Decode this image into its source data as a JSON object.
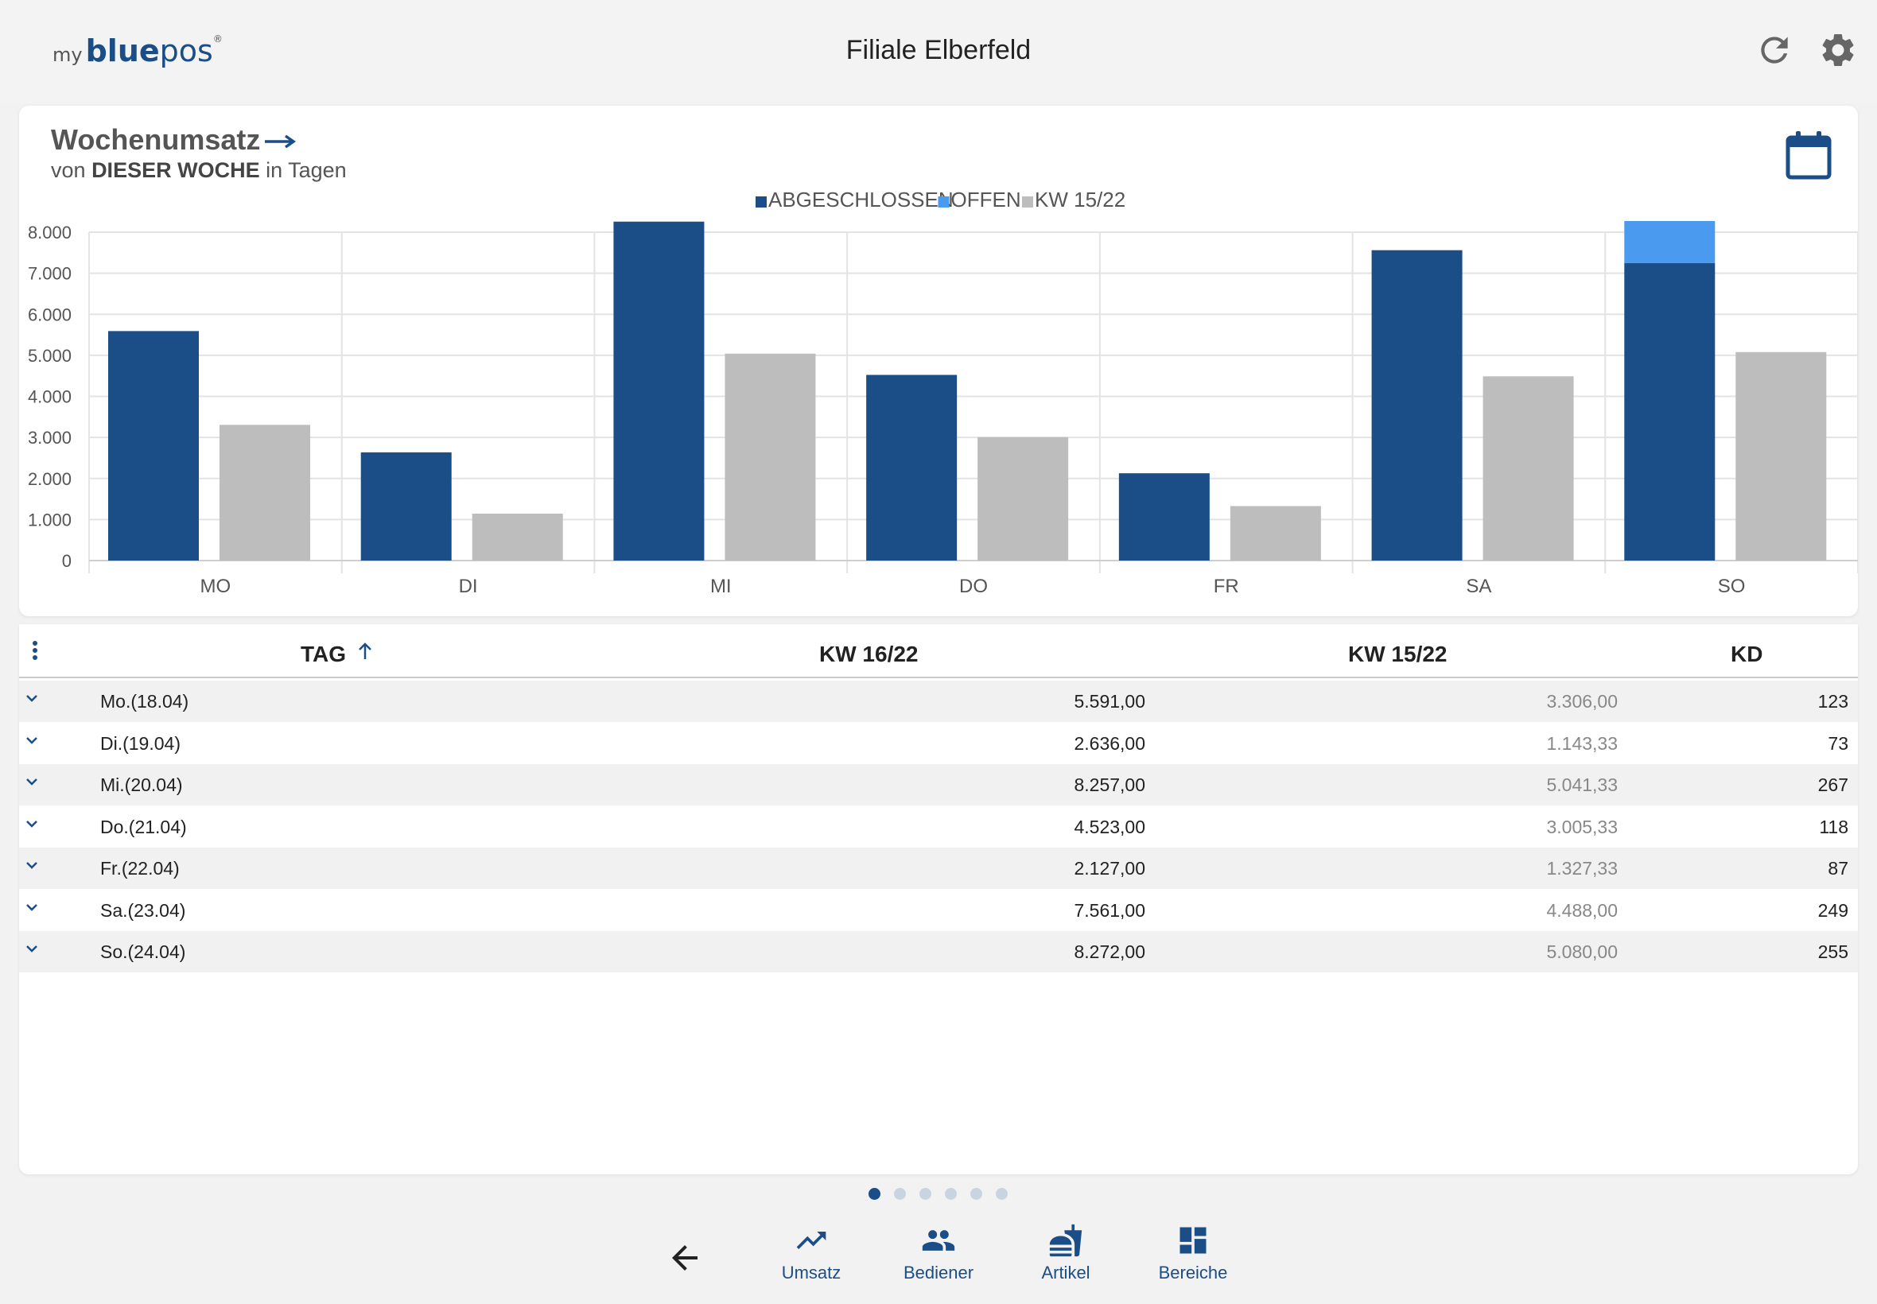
{
  "header": {
    "logo": {
      "my": "my",
      "blue": "blue",
      "pos": "pos",
      "reg": "®"
    },
    "title": "Filiale Elberfeld",
    "refresh_icon": "refresh-icon",
    "settings_icon": "gear-icon"
  },
  "chart_card": {
    "title": "Wochenumsatz",
    "subtitle_prefix": "von",
    "subtitle_bold": "DIESER WOCHE",
    "subtitle_suffix": "in Tagen",
    "calendar_icon": "calendar-icon"
  },
  "chart_data": {
    "type": "bar",
    "stacked_first_group": true,
    "categories": [
      "MO",
      "DI",
      "MI",
      "DO",
      "FR",
      "SA",
      "SO"
    ],
    "series": [
      {
        "name": "ABGESCHLOSSEN",
        "values": [
          5591,
          2636,
          8257,
          4523,
          2127,
          7561,
          7250
        ],
        "color": "#1b4d86"
      },
      {
        "name": "OFFEN",
        "values": [
          0,
          0,
          0,
          0,
          0,
          0,
          1022
        ],
        "color": "#4a9af0"
      },
      {
        "name": "KW 15/22",
        "values": [
          3306,
          1143.33,
          5041.33,
          3005.33,
          1327.33,
          4488,
          5080
        ],
        "color": "#bdbdbd"
      }
    ],
    "ylim": [
      0,
      8000
    ],
    "yticks": [
      "0",
      "1.000",
      "2.000",
      "3.000",
      "4.000",
      "5.000",
      "6.000",
      "7.000",
      "8.000"
    ],
    "grid": true,
    "legend_position": "top-center"
  },
  "table": {
    "headers": {
      "tag": "TAG",
      "kw16": "KW 16/22",
      "kw15": "KW 15/22",
      "kd": "KD"
    },
    "rows": [
      {
        "day": "Mo.(18.04)",
        "kw16": "5.591,00",
        "kw15": "3.306,00",
        "kd": "123"
      },
      {
        "day": "Di.(19.04)",
        "kw16": "2.636,00",
        "kw15": "1.143,33",
        "kd": "73"
      },
      {
        "day": "Mi.(20.04)",
        "kw16": "8.257,00",
        "kw15": "5.041,33",
        "kd": "267"
      },
      {
        "day": "Do.(21.04)",
        "kw16": "4.523,00",
        "kw15": "3.005,33",
        "kd": "118"
      },
      {
        "day": "Fr.(22.04)",
        "kw16": "2.127,00",
        "kw15": "1.327,33",
        "kd": "87"
      },
      {
        "day": "Sa.(23.04)",
        "kw16": "7.561,00",
        "kw15": "4.488,00",
        "kd": "249"
      },
      {
        "day": "So.(24.04)",
        "kw16": "8.272,00",
        "kw15": "5.080,00",
        "kd": "255"
      }
    ]
  },
  "pager": {
    "count": 6,
    "active": 0
  },
  "bottom_nav": {
    "back_icon": "back-arrow-icon",
    "items": [
      {
        "label": "Umsatz",
        "icon": "trending-up-icon"
      },
      {
        "label": "Bediener",
        "icon": "people-icon"
      },
      {
        "label": "Artikel",
        "icon": "food-icon"
      },
      {
        "label": "Bereiche",
        "icon": "dashboard-icon"
      }
    ]
  },
  "colors": {
    "accent": "#1b4d86",
    "open": "#4a9af0",
    "previous": "#bdbdbd"
  }
}
